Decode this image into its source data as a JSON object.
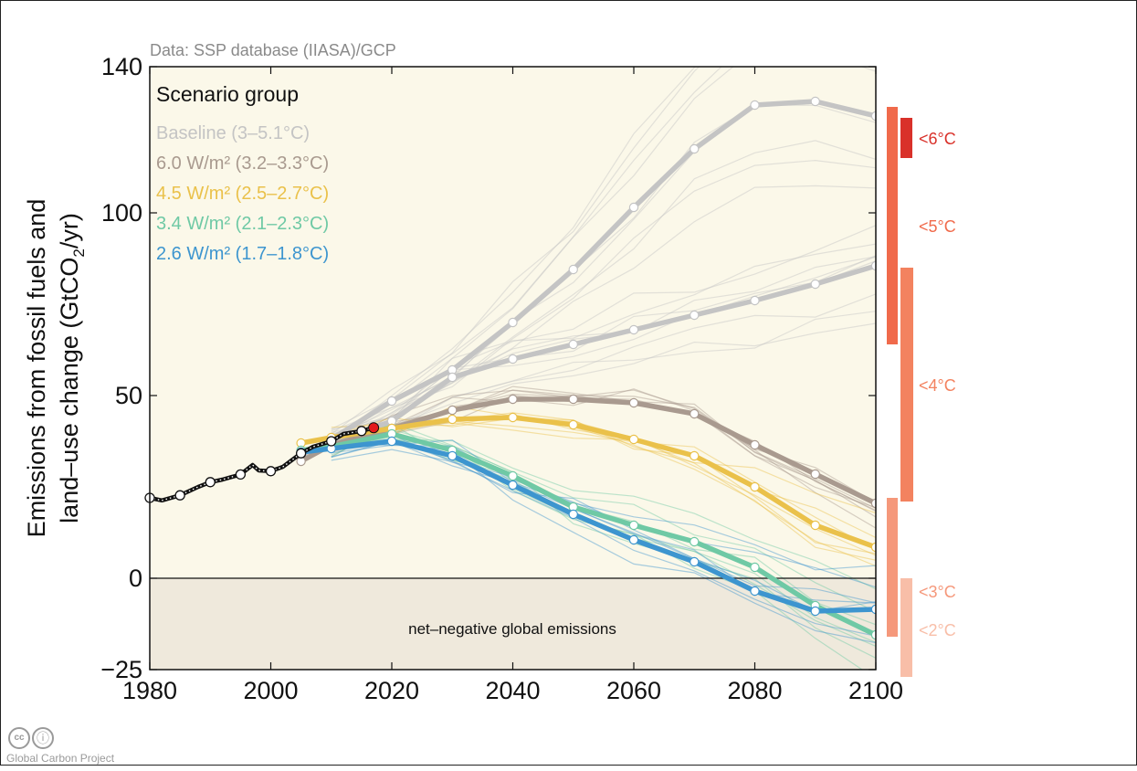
{
  "chart_data": {
    "type": "line",
    "source_note": "Data: SSP database (IIASA)/GCP",
    "ylabel_line1": "Emissions from fossil fuels and",
    "ylabel_line2_prefix": "land–use change (GtCO",
    "ylabel_sub": "2",
    "ylabel_line2_suffix": "/yr)",
    "xlim": [
      1980,
      2100
    ],
    "ylim": [
      -25,
      140
    ],
    "xticks": [
      "1980",
      "2000",
      "2020",
      "2040",
      "2060",
      "2080",
      "2100"
    ],
    "yticks": [
      "140",
      "100",
      "50",
      "0",
      "−25"
    ],
    "grid": false,
    "legend_title": "Scenario group",
    "legend_position": "top-left",
    "negative_region_label": "net–negative global emissions",
    "historical": {
      "x": [
        1980,
        1982,
        1985,
        1988,
        1990,
        1992,
        1995,
        1997,
        1998,
        2000,
        2002,
        2005,
        2007,
        2010,
        2012,
        2015,
        2017
      ],
      "y": [
        22,
        21.3,
        22.7,
        25,
        26.3,
        27,
        28.4,
        31,
        29.5,
        29.3,
        30.5,
        34.2,
        36,
        37.5,
        39.5,
        40.3,
        41.2
      ],
      "markers_x": [
        1980,
        1985,
        1990,
        1995,
        2000,
        2005,
        2010,
        2015
      ],
      "markers_y": [
        22,
        22.7,
        26.3,
        28.4,
        29.3,
        34.2,
        37.5,
        40.3
      ],
      "latest_x": 2017,
      "latest_y": 41.2,
      "color": "#111111",
      "latest_color": "#e41a1c"
    },
    "series": [
      {
        "name": "Baseline (3–5.1°C)",
        "color": "#c4c4c4",
        "x": [
          2005,
          2010,
          2020,
          2030,
          2040,
          2050,
          2060,
          2070,
          2080,
          2090,
          2100
        ],
        "y": [
          33.5,
          38,
          48.5,
          57,
          70,
          84.5,
          101.5,
          117.5,
          129.5,
          130.5,
          126.5
        ]
      },
      {
        "name": "Baseline (3–5.1°C)",
        "color": "#c4c4c4",
        "x": [
          2005,
          2010,
          2020,
          2030,
          2040,
          2050,
          2060,
          2070,
          2080,
          2090,
          2100
        ],
        "y": [
          33,
          37,
          43,
          55,
          60,
          64,
          68,
          72,
          76,
          80.5,
          85.5
        ]
      },
      {
        "name": "6.0 W/m² (3.2–3.3°C)",
        "color": "#a99a8f",
        "x": [
          2005,
          2010,
          2020,
          2030,
          2040,
          2050,
          2060,
          2070,
          2080,
          2090,
          2100
        ],
        "y": [
          32,
          36.5,
          41,
          46,
          49,
          49,
          48,
          45,
          36.5,
          28.5,
          20.5
        ]
      },
      {
        "name": "4.5 W/m² (2.5–2.7°C)",
        "color": "#eac14a",
        "x": [
          2005,
          2010,
          2020,
          2030,
          2040,
          2050,
          2060,
          2070,
          2080,
          2090,
          2100
        ],
        "y": [
          37,
          38.5,
          41,
          43.5,
          44,
          42,
          38,
          33.5,
          25,
          14.5,
          8.5
        ]
      },
      {
        "name": "3.4 W/m² (2.1–2.3°C)",
        "color": "#6fc9a5",
        "x": [
          2005,
          2010,
          2020,
          2030,
          2040,
          2050,
          2060,
          2070,
          2080,
          2090,
          2100
        ],
        "y": [
          35,
          36,
          39.5,
          35,
          28,
          19.5,
          14.5,
          10,
          3,
          -7.5,
          -15.5
        ]
      },
      {
        "name": "2.6 W/m² (1.7–1.8°C)",
        "color": "#3d95cf",
        "x": [
          2005,
          2010,
          2020,
          2030,
          2040,
          2050,
          2060,
          2070,
          2080,
          2090,
          2100
        ],
        "y": [
          34.5,
          35.5,
          37.5,
          33.5,
          25.5,
          17.5,
          10.5,
          4.5,
          -3.5,
          -9,
          -8.5
        ]
      }
    ],
    "legend": [
      {
        "label": "Baseline (3–5.1°C)",
        "color": "#c4c4c4"
      },
      {
        "label": "6.0 W/m² (3.2–3.3°C)",
        "color": "#a99a8f"
      },
      {
        "label": "4.5 W/m² (2.5–2.7°C)",
        "color": "#eac14a"
      },
      {
        "label": "3.4 W/m² (2.1–2.3°C)",
        "color": "#6fc9a5"
      },
      {
        "label": "2.6 W/m² (1.7–1.8°C)",
        "color": "#3d95cf"
      }
    ],
    "temperature_bars": [
      {
        "label": "<6°C",
        "y_range": [
          115,
          126
        ],
        "color": "#d9312a"
      },
      {
        "label": "<5°C",
        "y_range": [
          64,
          129
        ],
        "color": "#f06a4b"
      },
      {
        "label": "<4°C",
        "y_range": [
          21,
          85
        ],
        "color": "#f3825f"
      },
      {
        "label": "<3°C",
        "y_range": [
          -16,
          22
        ],
        "color": "#f5987b"
      },
      {
        "label": "<2°C",
        "y_range": [
          -27,
          0
        ],
        "color": "#f8bea8"
      }
    ],
    "background": {
      "plot": "#fbf8e9",
      "negative": "#efe9dc"
    }
  },
  "footer": {
    "license_cc": "cc",
    "license_by": "ⓘ",
    "organization": "Global Carbon Project"
  }
}
